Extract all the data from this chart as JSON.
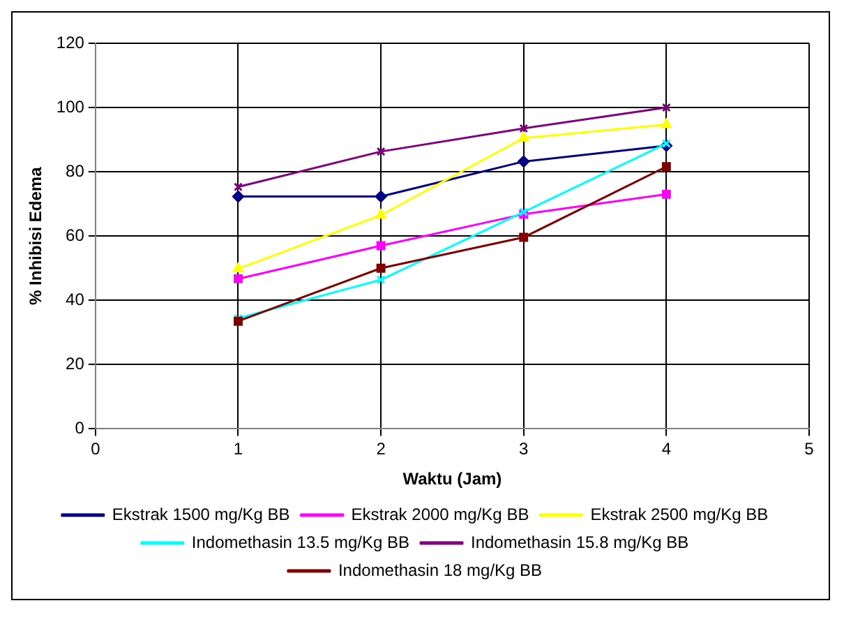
{
  "chart_data": {
    "type": "line",
    "xlabel": "Waktu (Jam)",
    "ylabel": "% Inhibisi Edema",
    "x": [
      1,
      2,
      3,
      4
    ],
    "xlim": [
      0,
      5
    ],
    "xticks": [
      0,
      1,
      2,
      3,
      4,
      5
    ],
    "ylim": [
      0,
      120
    ],
    "yticks": [
      0,
      20,
      40,
      60,
      80,
      100,
      120
    ],
    "grid": true,
    "legend": "bottom",
    "line_style": "solid",
    "series": [
      {
        "name": "Ekstrak 1500 mg/Kg BB",
        "color": "#000080",
        "marker": "diamond",
        "values": [
          72.3,
          72.3,
          83.2,
          88.1
        ]
      },
      {
        "name": "Ekstrak 2000 mg/Kg BB",
        "color": "#ff00ff",
        "marker": "square",
        "values": [
          46.7,
          57,
          66.8,
          73
        ]
      },
      {
        "name": "Ekstrak 2500 mg/Kg BB",
        "color": "#ffff00",
        "marker": "triangle",
        "values": [
          49.8,
          66.5,
          90.5,
          94.7
        ]
      },
      {
        "name": "Indomethasin 13.5 mg/Kg BB",
        "color": "#00ffff",
        "marker": "cross",
        "values": [
          34.4,
          46.4,
          67.5,
          88.8
        ]
      },
      {
        "name": "Indomethasin 15.8 mg/Kg BB",
        "color": "#800080",
        "marker": "cross",
        "values": [
          75.3,
          86.3,
          93.5,
          100
        ]
      },
      {
        "name": "Indomethasin 18 mg/Kg BB",
        "color": "#800000",
        "marker": "square",
        "values": [
          33.5,
          50,
          59.6,
          81.6
        ]
      }
    ]
  }
}
